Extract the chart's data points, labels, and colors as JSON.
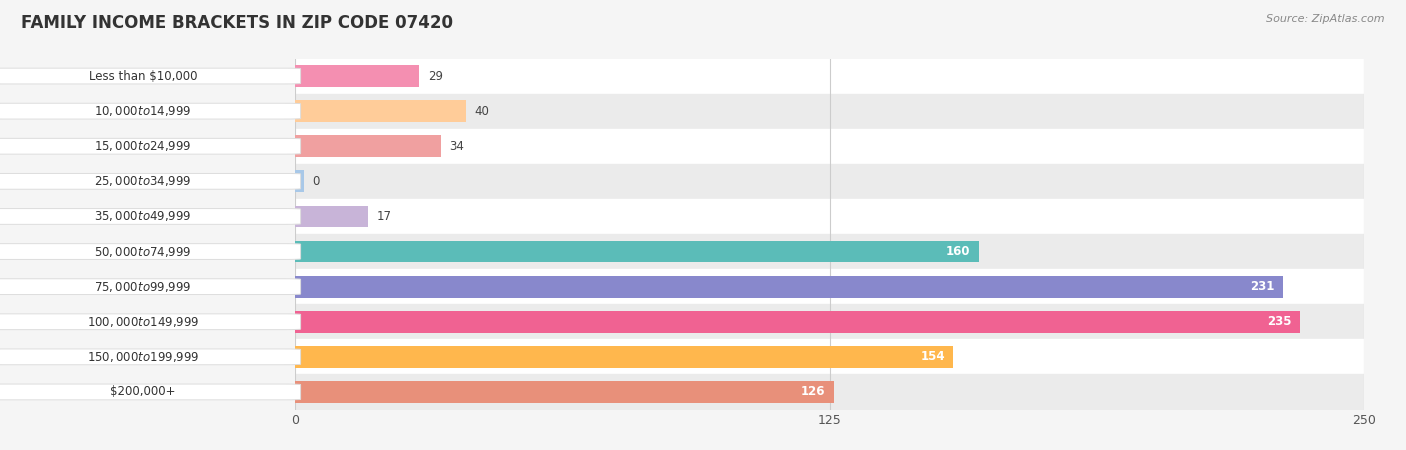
{
  "title": "FAMILY INCOME BRACKETS IN ZIP CODE 07420",
  "source": "Source: ZipAtlas.com",
  "categories": [
    "Less than $10,000",
    "$10,000 to $14,999",
    "$15,000 to $24,999",
    "$25,000 to $34,999",
    "$35,000 to $49,999",
    "$50,000 to $74,999",
    "$75,000 to $99,999",
    "$100,000 to $149,999",
    "$150,000 to $199,999",
    "$200,000+"
  ],
  "values": [
    29,
    40,
    34,
    0,
    17,
    160,
    231,
    235,
    154,
    126
  ],
  "bar_colors": [
    "#F48FB1",
    "#FFCC99",
    "#F0A0A0",
    "#A8C8E8",
    "#C8B4D8",
    "#5BBCB8",
    "#8888CC",
    "#F06292",
    "#FFB74D",
    "#E8907A"
  ],
  "background_color": "#f5f5f5",
  "xlim": [
    0,
    250
  ],
  "xticks": [
    0,
    125,
    250
  ],
  "title_fontsize": 12,
  "label_fontsize": 8.5,
  "value_fontsize": 8.5,
  "bar_height": 0.62
}
